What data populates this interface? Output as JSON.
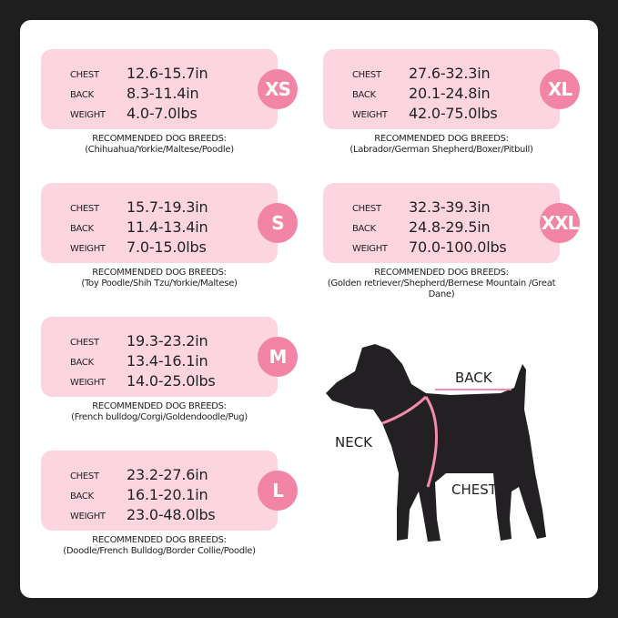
{
  "rec_heading": "RECOMMENDED DOG BREEDS:",
  "row_labels": {
    "chest": "CHEST",
    "back": "BACK",
    "weight": "WEIGHT"
  },
  "colors": {
    "card": "#fcd5e0",
    "badge": "#f284a6",
    "background": "#1e1e1e",
    "dog": "#232024"
  },
  "sizes": [
    {
      "size": "XS",
      "chest": "12.6-15.7in",
      "back": "8.3-11.4in",
      "weight": "4.0-7.0lbs",
      "breeds": "(Chihuahua/Yorkie/Maltese/Poodle)"
    },
    {
      "size": "S",
      "chest": "15.7-19.3in",
      "back": "11.4-13.4in",
      "weight": "7.0-15.0lbs",
      "breeds": "(Toy Poodle/Shih Tzu/Yorkie/Maltese)"
    },
    {
      "size": "M",
      "chest": "19.3-23.2in",
      "back": "13.4-16.1in",
      "weight": "14.0-25.0lbs",
      "breeds": "(French bulldog/Corgi/Goldendoodle/Pug)"
    },
    {
      "size": "L",
      "chest": "23.2-27.6in",
      "back": "16.1-20.1in",
      "weight": "23.0-48.0lbs",
      "breeds": "(Doodle/French Bulldog/Border Collie/Poodle)"
    },
    {
      "size": "XL",
      "chest": "27.6-32.3in",
      "back": "20.1-24.8in",
      "weight": "42.0-75.0lbs",
      "breeds": "(Labrador/German Shepherd/Boxer/Pitbull)"
    },
    {
      "size": "XXL",
      "chest": "32.3-39.3in",
      "back": "24.8-29.5in",
      "weight": "70.0-100.0lbs",
      "breeds": "(Golden retriever/Shepherd/Bernese Mountain /Great Dane)"
    }
  ],
  "diagram": {
    "back": "BACK",
    "neck": "NECK",
    "chest": "CHEST"
  }
}
